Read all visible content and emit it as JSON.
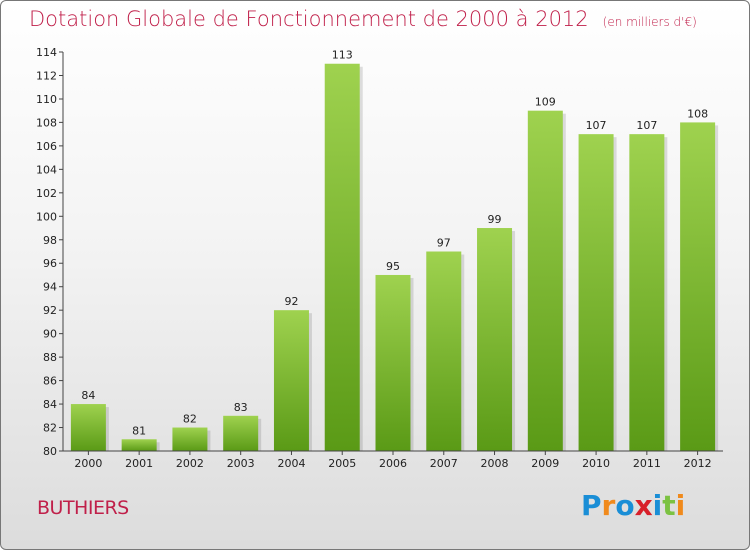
{
  "title": "Dotation Globale de Fonctionnement de 2000 à 2012",
  "unit_note": "(en milliers d'€)",
  "commune": "BUTHIERS",
  "logo": {
    "text": "Proxiti",
    "letters": [
      {
        "ch": "P",
        "color": "#1a8ed6"
      },
      {
        "ch": "r",
        "color": "#f08a1c"
      },
      {
        "ch": "o",
        "color": "#1a8ed6"
      },
      {
        "ch": "x",
        "color": "#d8202a"
      },
      {
        "ch": "i",
        "color": "#1a8ed6"
      },
      {
        "ch": "t",
        "color": "#7cc242"
      },
      {
        "ch": "i",
        "color": "#f08a1c"
      }
    ]
  },
  "colors": {
    "title": "#c0204a",
    "bar_top": "#9fd24f",
    "bar_bottom": "#5a9a16"
  },
  "chart_data": {
    "type": "bar",
    "title": "Dotation Globale de Fonctionnement de 2000 à 2012",
    "subtitle": "(en milliers d'€)",
    "categories": [
      "2000",
      "2001",
      "2002",
      "2003",
      "2004",
      "2005",
      "2006",
      "2007",
      "2008",
      "2009",
      "2010",
      "2011",
      "2012"
    ],
    "values": [
      84,
      81,
      82,
      83,
      92,
      113,
      95,
      97,
      99,
      109,
      107,
      107,
      108
    ],
    "ylim": [
      80,
      114
    ],
    "yticks": [
      80,
      82,
      84,
      86,
      88,
      90,
      92,
      94,
      96,
      98,
      100,
      102,
      104,
      106,
      108,
      110,
      112,
      114
    ],
    "grid": false,
    "xlabel": "",
    "ylabel": ""
  }
}
